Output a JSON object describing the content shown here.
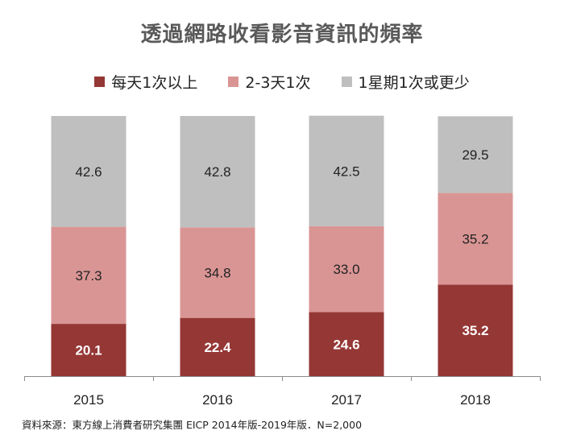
{
  "chart_data": {
    "type": "bar",
    "stacked": true,
    "title": "透過網路收看影音資訊的頻率",
    "categories": [
      "2015",
      "2016",
      "2017",
      "2018"
    ],
    "series": [
      {
        "name": "每天1次以上",
        "color": "#953735",
        "label_color": "#ffffff",
        "values": [
          20.1,
          22.4,
          24.6,
          35.2
        ]
      },
      {
        "name": "2-3天1次",
        "color": "#d99594",
        "label_color": "#222222",
        "values": [
          37.3,
          34.8,
          33.0,
          35.2
        ]
      },
      {
        "name": "1星期1次或更少",
        "color": "#bfbfbf",
        "label_color": "#222222",
        "values": [
          42.6,
          42.8,
          42.5,
          29.5
        ]
      }
    ],
    "value_labels": [
      [
        "20.1",
        "22.4",
        "24.6",
        "35.2"
      ],
      [
        "37.3",
        "34.8",
        "33.0",
        "35.2"
      ],
      [
        "42.6",
        "42.8",
        "42.5",
        "29.5"
      ]
    ],
    "ylim": [
      0,
      100
    ],
    "legend_position": "top",
    "grid": false
  },
  "source_note": "資料來源：東方線上消費者研究集團 EICP 2014年版-2019年版．N=2,000"
}
